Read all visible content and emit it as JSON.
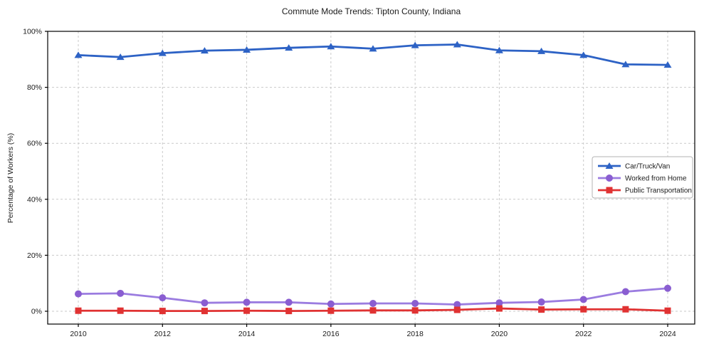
{
  "chart_data": {
    "type": "line",
    "title": "Commute Mode Trends: Tipton County, Indiana",
    "xlabel": "",
    "ylabel": "Percentage of Workers (%)",
    "x": [
      2010,
      2011,
      2012,
      2013,
      2014,
      2015,
      2016,
      2017,
      2018,
      2019,
      2020,
      2021,
      2022,
      2023,
      2024
    ],
    "x_ticks": [
      2010,
      2012,
      2014,
      2016,
      2018,
      2020,
      2022,
      2024
    ],
    "x_tick_labels": [
      "2010",
      "2012",
      "2014",
      "2016",
      "2018",
      "2020",
      "2022",
      "2024"
    ],
    "y_ticks": [
      0,
      20,
      40,
      60,
      80,
      100
    ],
    "y_tick_labels": [
      "0%",
      "20%",
      "40%",
      "60%",
      "80%",
      "100%"
    ],
    "ylim": [
      -4.6,
      100
    ],
    "grid": "on",
    "grid_style": "dashed",
    "legend_position": "center-right",
    "series": [
      {
        "name": "Car/Truck/Van",
        "marker": "triangle",
        "color": "#2d62c5",
        "marker_color": "#2d62c5",
        "values": [
          91.5,
          90.8,
          92.2,
          93.1,
          93.4,
          94.1,
          94.6,
          93.8,
          95.0,
          95.3,
          93.2,
          92.9,
          91.5,
          88.2,
          88.0
        ]
      },
      {
        "name": "Worked from Home",
        "marker": "circle",
        "color": "#9b7ce0",
        "marker_color": "#8a5ed1",
        "values": [
          6.2,
          6.4,
          4.8,
          3.0,
          3.2,
          3.2,
          2.6,
          2.8,
          2.8,
          2.4,
          3.0,
          3.3,
          4.2,
          7.0,
          8.2
        ]
      },
      {
        "name": "Public Transportation",
        "marker": "square",
        "color": "#e03232",
        "marker_color": "#e03232",
        "values": [
          0.2,
          0.2,
          0.1,
          0.1,
          0.2,
          0.1,
          0.2,
          0.3,
          0.3,
          0.5,
          1.0,
          0.6,
          0.7,
          0.7,
          0.2
        ]
      }
    ],
    "style": {
      "background": "#ffffff",
      "grid_color": "#c9c9c9",
      "axis_color": "#000000",
      "text_color": "#1a1a1a",
      "legend_border": "#b3b3b3",
      "legend_background": "#ffffff"
    }
  }
}
